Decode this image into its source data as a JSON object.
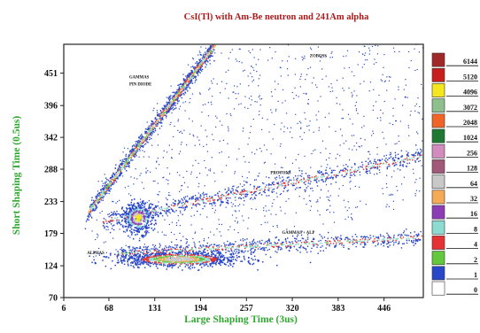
{
  "chart_data": {
    "type": "heatmap",
    "title": "CsI(Tl) with Am-Be neutron and 241Am alpha",
    "xlabel": "Large Shaping Time (3us)",
    "ylabel": "Short Shaping Time (0.5us)",
    "xlim": [
      6,
      500
    ],
    "ylim": [
      70,
      500
    ],
    "x_ticks": [
      "6",
      "68",
      "131",
      "194",
      "257",
      "320",
      "383",
      "446"
    ],
    "y_ticks": [
      "70",
      "124",
      "179",
      "233",
      "288",
      "342",
      "396",
      "451"
    ],
    "annotations": [
      {
        "text": "GAMMAS",
        "x": 96,
        "y": 442
      },
      {
        "text": "PIN DIODE",
        "x": 96,
        "y": 430
      },
      {
        "text": "ZOBOSS",
        "x": 344,
        "y": 478
      },
      {
        "text": "PROTONS",
        "x": 290,
        "y": 280
      },
      {
        "text": "GAMMAS + ALP",
        "x": 306,
        "y": 178
      },
      {
        "text": "ALPHAS",
        "x": 38,
        "y": 144
      }
    ],
    "color_scale": [
      {
        "label": "6144",
        "color": "#a02828"
      },
      {
        "label": "5120",
        "color": "#c81e1e"
      },
      {
        "label": "4096",
        "color": "#f5e61e"
      },
      {
        "label": "3072",
        "color": "#8fbf8f"
      },
      {
        "label": "2048",
        "color": "#f06428"
      },
      {
        "label": "1024",
        "color": "#1e7832"
      },
      {
        "label": "256",
        "color": "#d28cbe"
      },
      {
        "label": "128",
        "color": "#a05a78"
      },
      {
        "label": "64",
        "color": "#c8c8c8"
      },
      {
        "label": "32",
        "color": "#f5aa55"
      },
      {
        "label": "16",
        "color": "#8c3cb4"
      },
      {
        "label": "8",
        "color": "#8cdcd2"
      },
      {
        "label": "4",
        "color": "#e63232"
      },
      {
        "label": "2",
        "color": "#64c83c"
      },
      {
        "label": "1",
        "color": "#2846c8"
      },
      {
        "label": "0",
        "color": "#ffffff"
      }
    ],
    "bands": [
      {
        "name_ref": "gammas",
        "from": [
          40,
          215
        ],
        "to": [
          215,
          500
        ]
      },
      {
        "name_ref": "protons",
        "from": [
          60,
          200
        ],
        "to": [
          500,
          310
        ]
      },
      {
        "name_ref": "gammas_alp",
        "from": [
          80,
          145
        ],
        "to": [
          500,
          172
        ]
      },
      {
        "name_ref": "alphas",
        "center": [
          165,
          135
        ]
      },
      {
        "name_ref": "blob",
        "center": [
          108,
          205
        ]
      }
    ]
  },
  "colors": {
    "title": "#b01818",
    "axis_label": "#30a830",
    "tick": "#111111"
  }
}
